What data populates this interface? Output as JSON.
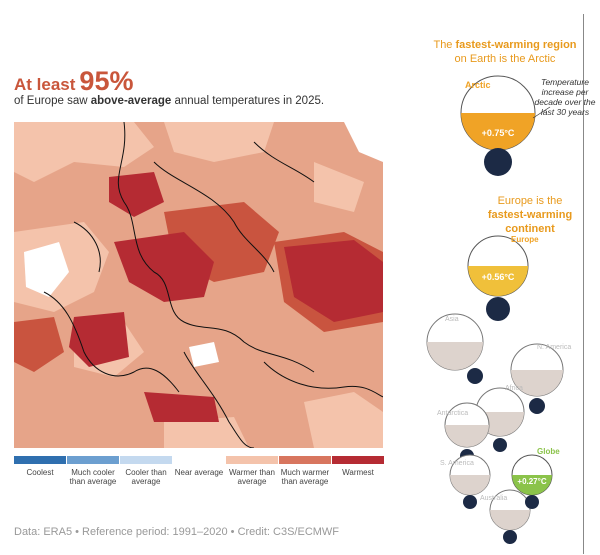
{
  "headline": {
    "prefix": "At least",
    "value": "95%"
  },
  "subtitle": {
    "before": "of Europe saw ",
    "emphasis": "above-average",
    "after": " annual temperatures in 2025."
  },
  "map": {
    "region": "Europe",
    "dominant_category": "Warmer than average"
  },
  "legend": {
    "items": [
      {
        "label": "Coolest",
        "color": "#2f6faf"
      },
      {
        "label": "Much cooler than average",
        "color": "#6c9fd0"
      },
      {
        "label": "Cooler than average",
        "color": "#c4d9ef"
      },
      {
        "label": "Near average",
        "color": "#ffffff"
      },
      {
        "label": "Warmer than average",
        "color": "#f4c3ab"
      },
      {
        "label": "Much warmer than average",
        "color": "#d8765f"
      },
      {
        "label": "Warmest",
        "color": "#b52b33"
      }
    ]
  },
  "source": "Data: ERA5 • Reference period: 1991–2020 • Credit: C3S/ECMWF",
  "right_panel": {
    "arctic_heading": {
      "before": "The ",
      "bold": "fastest-warming region",
      "after": "on Earth is the Arctic"
    },
    "europe_heading": {
      "before": "Europe is the",
      "bold": "fastest-warming continent"
    },
    "annotation": "Temperature increase per decade over the last 30 years",
    "accent_color": "#f0a326",
    "globe_color": "#8bc34a",
    "bulbs": [
      {
        "name": "Arctic",
        "value": "+0.75°C"
      },
      {
        "name": "Europe",
        "value": "+0.56°C"
      },
      {
        "name": "Asia",
        "value": ""
      },
      {
        "name": "N. America",
        "value": ""
      },
      {
        "name": "Africa",
        "value": ""
      },
      {
        "name": "Antarctica",
        "value": ""
      },
      {
        "name": "S. America",
        "value": ""
      },
      {
        "name": "Australia",
        "value": ""
      },
      {
        "name": "Globe",
        "value": "+0.27°C"
      }
    ]
  }
}
